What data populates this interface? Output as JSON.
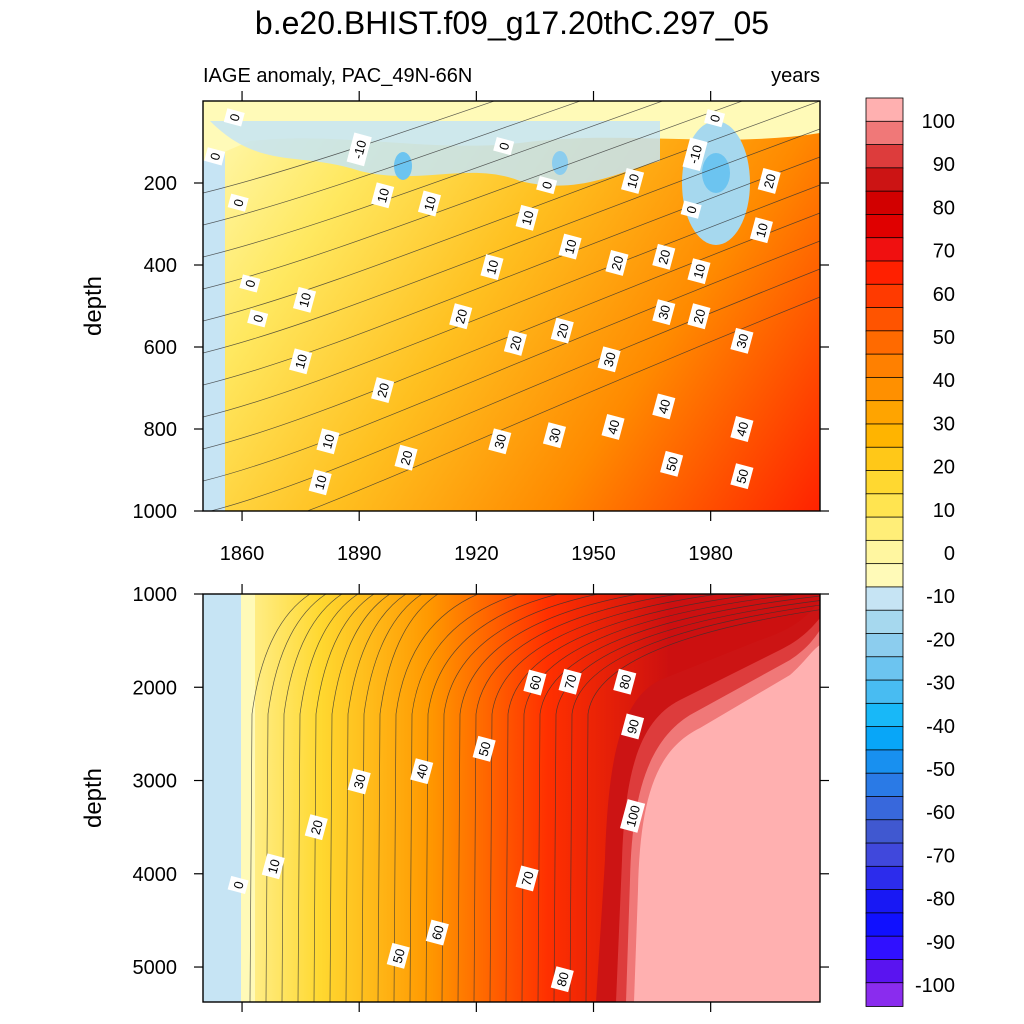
{
  "chart_data": {
    "type": "contour",
    "title": "b.e20.BHIST.f09_g17.20thC.297_05",
    "subtitle_left": "IAGE anomaly, PAC_49N-66N",
    "subtitle_right": "years",
    "x": {
      "range": [
        1850,
        2008
      ],
      "ticks": [
        1860,
        1890,
        1920,
        1950,
        1980
      ],
      "tick_labels": [
        "1860",
        "1890",
        "1920",
        "1950",
        "1980"
      ]
    },
    "panels": [
      {
        "name": "upper",
        "ylabel": "depth",
        "yrange": [
          0,
          1000
        ],
        "ticks": [
          200,
          400,
          600,
          800,
          1000
        ],
        "tick_labels": [
          "200",
          "400",
          "600",
          "800",
          "1000"
        ],
        "contour_labels": [
          {
            "text": "0",
            "x": 1858,
            "y": 40
          },
          {
            "text": "0",
            "x": 1853,
            "y": 135
          },
          {
            "text": "-10",
            "x": 1890,
            "y": 118
          },
          {
            "text": "0",
            "x": 1927,
            "y": 110
          },
          {
            "text": "0",
            "x": 1981,
            "y": 42
          },
          {
            "text": "-10",
            "x": 1976,
            "y": 130
          },
          {
            "text": "0",
            "x": 1859,
            "y": 248
          },
          {
            "text": "10",
            "x": 1896,
            "y": 230
          },
          {
            "text": "10",
            "x": 1908,
            "y": 250
          },
          {
            "text": "0",
            "x": 1938,
            "y": 205
          },
          {
            "text": "10",
            "x": 1960,
            "y": 195
          },
          {
            "text": "20",
            "x": 1995,
            "y": 195
          },
          {
            "text": "10",
            "x": 1933,
            "y": 285
          },
          {
            "text": "0",
            "x": 1975,
            "y": 265
          },
          {
            "text": "10",
            "x": 1944,
            "y": 355
          },
          {
            "text": "10",
            "x": 1993,
            "y": 315
          },
          {
            "text": "20",
            "x": 1956,
            "y": 395
          },
          {
            "text": "20",
            "x": 1968,
            "y": 380
          },
          {
            "text": "10",
            "x": 1924,
            "y": 405
          },
          {
            "text": "10",
            "x": 1977,
            "y": 415
          },
          {
            "text": "0",
            "x": 1862,
            "y": 445
          },
          {
            "text": "0",
            "x": 1864,
            "y": 530
          },
          {
            "text": "10",
            "x": 1876,
            "y": 485
          },
          {
            "text": "20",
            "x": 1916,
            "y": 525
          },
          {
            "text": "30",
            "x": 1968,
            "y": 515
          },
          {
            "text": "20",
            "x": 1977,
            "y": 525
          },
          {
            "text": "20",
            "x": 1942,
            "y": 560
          },
          {
            "text": "20",
            "x": 1930,
            "y": 590
          },
          {
            "text": "30",
            "x": 1988,
            "y": 585
          },
          {
            "text": "10",
            "x": 1875,
            "y": 635
          },
          {
            "text": "30",
            "x": 1954,
            "y": 630
          },
          {
            "text": "20",
            "x": 1896,
            "y": 705
          },
          {
            "text": "40",
            "x": 1968,
            "y": 745
          },
          {
            "text": "40",
            "x": 1955,
            "y": 795
          },
          {
            "text": "40",
            "x": 1988,
            "y": 800
          },
          {
            "text": "30",
            "x": 1940,
            "y": 815
          },
          {
            "text": "10",
            "x": 1882,
            "y": 830
          },
          {
            "text": "30",
            "x": 1926,
            "y": 830
          },
          {
            "text": "20",
            "x": 1902,
            "y": 870
          },
          {
            "text": "50",
            "x": 1970,
            "y": 885
          },
          {
            "text": "50",
            "x": 1988,
            "y": 915
          },
          {
            "text": "10",
            "x": 1880,
            "y": 930
          }
        ]
      },
      {
        "name": "lower",
        "ylabel": "depth",
        "yrange": [
          1000,
          5375
        ],
        "ticks": [
          1000,
          2000,
          3000,
          4000,
          5000
        ],
        "tick_labels": [
          "1000",
          "2000",
          "3000",
          "4000",
          "5000"
        ],
        "contour_labels": [
          {
            "text": "60",
            "x": 1935,
            "y": 1950
          },
          {
            "text": "70",
            "x": 1944,
            "y": 1940
          },
          {
            "text": "80",
            "x": 1958,
            "y": 1940
          },
          {
            "text": "90",
            "x": 1960,
            "y": 2420
          },
          {
            "text": "50",
            "x": 1922,
            "y": 2660
          },
          {
            "text": "40",
            "x": 1906,
            "y": 2900
          },
          {
            "text": "30",
            "x": 1890,
            "y": 3010
          },
          {
            "text": "100",
            "x": 1960,
            "y": 3380
          },
          {
            "text": "20",
            "x": 1879,
            "y": 3500
          },
          {
            "text": "10",
            "x": 1868,
            "y": 3920
          },
          {
            "text": "0",
            "x": 1859,
            "y": 4120
          },
          {
            "text": "70",
            "x": 1933,
            "y": 4050
          },
          {
            "text": "60",
            "x": 1910,
            "y": 4630
          },
          {
            "text": "50",
            "x": 1900,
            "y": 4880
          },
          {
            "text": "80",
            "x": 1942,
            "y": 5130
          }
        ]
      }
    ],
    "colorbar": {
      "labels": [
        "100",
        "90",
        "80",
        "70",
        "60",
        "50",
        "40",
        "30",
        "20",
        "10",
        "0",
        "-10",
        "-20",
        "-30",
        "-40",
        "-50",
        "-60",
        "-70",
        "-80",
        "-90",
        "-100"
      ],
      "colors": [
        "#ffb0b0",
        "#f07878",
        "#dd3c3c",
        "#cc1414",
        "#d20000",
        "#e00000",
        "#f01010",
        "#ff2000",
        "#ff3a00",
        "#ff5400",
        "#ff6a00",
        "#ff8000",
        "#ff9000",
        "#ffa400",
        "#ffb400",
        "#ffc818",
        "#ffd830",
        "#ffe450",
        "#ffee78",
        "#fff6a0",
        "#fffab8",
        "#c6e4f4",
        "#a6d8ee",
        "#8ccdee",
        "#6cc4f0",
        "#48bcf2",
        "#18b8f8",
        "#08a6f8",
        "#1890f0",
        "#2a7ae6",
        "#3868dc",
        "#4058d0",
        "#4048dc",
        "#2c2cec",
        "#1818f4",
        "#1010ff",
        "#3010ff",
        "#5a14f0",
        "#8a2cee"
      ]
    }
  }
}
